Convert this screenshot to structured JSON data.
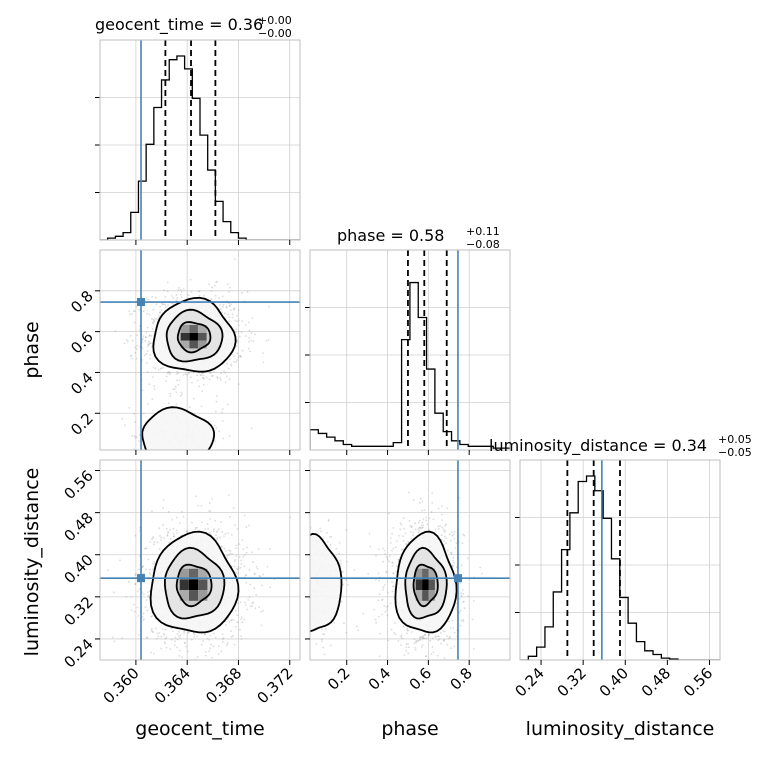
{
  "colors": {
    "truth": "#4682b4",
    "contour": "#000000",
    "scatter": "#9a9a9a",
    "grid": "#d0d0d0"
  },
  "chart_data": {
    "type": "corner",
    "parameters": [
      {
        "key": "geocent_time",
        "label": "geocent_time",
        "range": [
          0.3572,
          0.3728
        ],
        "ticks": [
          0.36,
          0.364,
          0.368,
          0.372
        ],
        "tick_labels": [
          "0.360",
          "0.364",
          "0.368",
          "0.372"
        ],
        "truth": 0.3604,
        "quantiles": [
          0.3623,
          0.3643,
          0.3662
        ],
        "title": {
          "prefix": "geocent_time = 0.36",
          "plus": "+0.00",
          "minus": "−0.00"
        },
        "hist": {
          "start": 0.3572,
          "bin_width": 0.0006,
          "counts": [
            0.0,
            0.01,
            0.02,
            0.04,
            0.15,
            0.32,
            0.52,
            0.72,
            0.87,
            0.98,
            1.0,
            0.93,
            0.77,
            0.57,
            0.38,
            0.21,
            0.1,
            0.04,
            0.01,
            0.0,
            0.0,
            0.0,
            0.0,
            0.0,
            0.0,
            0.0
          ]
        }
      },
      {
        "key": "phase",
        "label": "phase",
        "range": [
          0.02,
          1.0
        ],
        "ticks": [
          0.2,
          0.4,
          0.6,
          0.8
        ],
        "tick_labels": [
          "0.2",
          "0.4",
          "0.6",
          "0.8"
        ],
        "truth": 0.745,
        "quantiles": [
          0.5,
          0.58,
          0.69
        ],
        "title": {
          "prefix": "phase = 0.58",
          "plus": "+0.11",
          "minus": "−0.08"
        },
        "hist": {
          "start": 0.02,
          "bin_width": 0.0408,
          "counts": [
            0.11,
            0.09,
            0.07,
            0.05,
            0.03,
            0.02,
            0.02,
            0.02,
            0.02,
            0.02,
            0.04,
            0.6,
            0.91,
            0.72,
            0.44,
            0.2,
            0.1,
            0.05,
            0.03,
            0.02,
            0.02,
            0.02,
            0.01,
            0.01
          ]
        }
      },
      {
        "key": "luminosity_distance",
        "label": "luminosity_distance",
        "range": [
          0.2,
          0.58
        ],
        "ticks": [
          0.24,
          0.32,
          0.4,
          0.48,
          0.56
        ],
        "tick_labels": [
          "0.24",
          "0.32",
          "0.40",
          "0.48",
          "0.56"
        ],
        "truth": 0.3555,
        "quantiles": [
          0.29,
          0.34,
          0.39
        ],
        "title": {
          "prefix": "luminosity_distance = 0.34",
          "plus": "+0.05",
          "minus": "−0.05"
        },
        "hist": {
          "start": 0.2,
          "bin_width": 0.0158,
          "counts": [
            0.0,
            0.02,
            0.07,
            0.18,
            0.37,
            0.6,
            0.8,
            0.97,
            1.0,
            0.92,
            0.77,
            0.55,
            0.34,
            0.2,
            0.1,
            0.05,
            0.03,
            0.01,
            0.005,
            0.0,
            0.0,
            0.0,
            0.0,
            0.0
          ]
        }
      }
    ],
    "pairs": [
      {
        "x": "geocent_time",
        "y": "phase",
        "modes": [
          {
            "cx": 0.3645,
            "cy": 0.575,
            "sx": 0.0015,
            "sy": 0.085,
            "weight": 0.85
          },
          {
            "cx": 0.3632,
            "cy": 0.09,
            "sx": 0.0014,
            "sy": 0.065,
            "weight": 0.15
          }
        ],
        "truth_point": [
          0.3604,
          0.745
        ]
      },
      {
        "x": "geocent_time",
        "y": "luminosity_distance",
        "modes": [
          {
            "cx": 0.3645,
            "cy": 0.343,
            "sx": 0.0016,
            "sy": 0.045,
            "weight": 1.0
          }
        ],
        "truth_point": [
          0.3604,
          0.3555
        ]
      },
      {
        "x": "phase",
        "y": "luminosity_distance",
        "modes": [
          {
            "cx": 0.585,
            "cy": 0.343,
            "sx": 0.07,
            "sy": 0.045,
            "weight": 0.8
          },
          {
            "cx": 0.05,
            "cy": 0.343,
            "sx": 0.06,
            "sy": 0.045,
            "weight": 0.2
          }
        ],
        "truth_point": [
          0.745,
          0.3555
        ]
      }
    ],
    "grid": true,
    "legend": "none"
  }
}
